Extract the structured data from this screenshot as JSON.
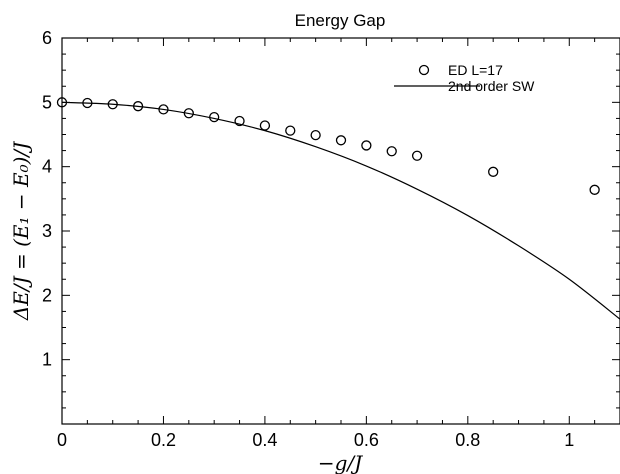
{
  "chart_data": {
    "type": "scatter",
    "title": "Energy Gap",
    "xlabel": "−g/J",
    "ylabel": "ΔE/J = (E₁ − E₀)/J",
    "xlim": [
      0,
      1.1
    ],
    "ylim": [
      0,
      6
    ],
    "xticks": [
      0,
      0.2,
      0.4,
      0.6,
      0.8,
      1
    ],
    "xtick_labels": [
      "0",
      "0.2",
      "0.4",
      "0.6",
      "0.8",
      "1"
    ],
    "yticks": [
      1,
      2,
      3,
      4,
      5,
      6
    ],
    "ytick_labels": [
      "1",
      "2",
      "3",
      "4",
      "5",
      "6"
    ],
    "grid": false,
    "legend_position": "top-right",
    "series": [
      {
        "name": "ED L=17",
        "kind": "markers",
        "marker": "open-circle",
        "x": [
          0,
          0.05,
          0.1,
          0.15,
          0.2,
          0.25,
          0.3,
          0.35,
          0.4,
          0.45,
          0.5,
          0.55,
          0.6,
          0.65,
          0.7,
          0.85,
          1.05
        ],
        "y": [
          5.0,
          4.99,
          4.97,
          4.94,
          4.89,
          4.83,
          4.77,
          4.71,
          4.64,
          4.56,
          4.49,
          4.41,
          4.33,
          4.24,
          4.17,
          3.92,
          3.64
        ]
      },
      {
        "name": "2nd order SW",
        "kind": "line",
        "x": [
          0,
          0.1,
          0.2,
          0.3,
          0.4,
          0.5,
          0.6,
          0.7,
          0.8,
          0.9,
          1.0,
          1.1
        ],
        "y": [
          5.0,
          4.97,
          4.89,
          4.75,
          4.56,
          4.31,
          4.01,
          3.65,
          3.24,
          2.77,
          2.25,
          1.63
        ]
      }
    ]
  }
}
